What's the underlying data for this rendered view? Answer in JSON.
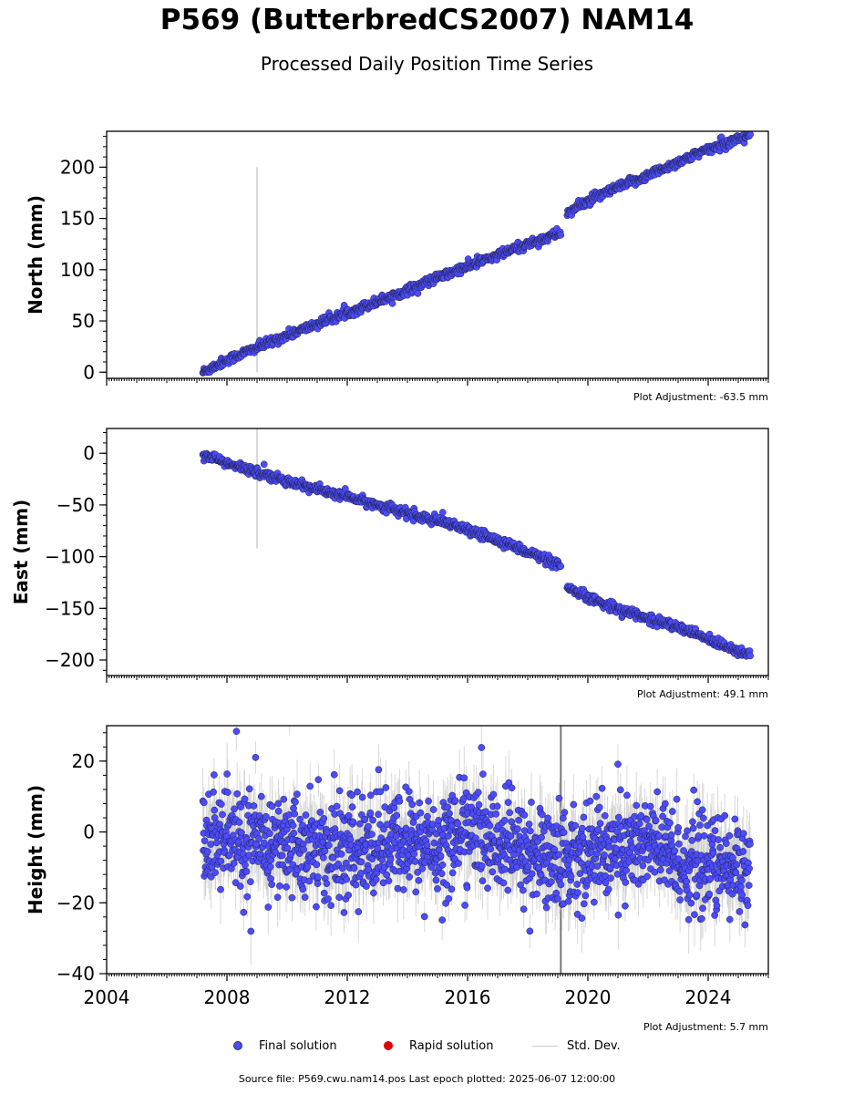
{
  "title": "P569 (ButterbredCS2007) NAM14",
  "subtitle": "Processed Daily Position Time Series",
  "legend": {
    "final": "Final solution",
    "rapid": "Rapid solution",
    "stddev": "Std. Dev."
  },
  "footer": "Source file: P569.cwu.nam14.pos  Last epoch plotted: 2025-06-07 12:00:00",
  "colors": {
    "final": "#4b4bff",
    "rapid": "#e00000",
    "stddev": "#c8c8c8",
    "outline": "#222244"
  },
  "chart_data": [
    {
      "type": "scatter",
      "panel": "north",
      "ylabel": "North (mm)",
      "xlim": [
        2004,
        2026
      ],
      "ylim": [
        -6,
        235
      ],
      "yticks": [
        0,
        50,
        100,
        150,
        200
      ],
      "xticks": [
        2004,
        2008,
        2012,
        2016,
        2020,
        2024
      ],
      "adjustment": "Plot Adjustment: -63.5 mm",
      "series": [
        {
          "name": "Final solution",
          "x": [
            2007.2,
            2008,
            2009,
            2010,
            2011,
            2012,
            2013,
            2014,
            2015,
            2016,
            2017,
            2018,
            2019.1,
            2019.3,
            2020,
            2021,
            2022,
            2023,
            2024,
            2025.4
          ],
          "y": [
            0,
            12,
            24,
            36,
            47,
            58,
            69,
            80,
            92,
            103,
            114,
            125,
            136,
            155,
            167,
            180,
            192,
            205,
            217,
            232
          ]
        }
      ],
      "spike": {
        "x": 2009.0,
        "y1": 200,
        "y2": 0
      }
    },
    {
      "type": "scatter",
      "panel": "east",
      "ylabel": "East (mm)",
      "xlim": [
        2004,
        2026
      ],
      "ylim": [
        -215,
        24
      ],
      "yticks": [
        0,
        -50,
        -100,
        -150,
        -200
      ],
      "xticks": [
        2004,
        2008,
        2012,
        2016,
        2020,
        2024
      ],
      "adjustment": "Plot Adjustment: 49.1 mm",
      "series": [
        {
          "name": "Final solution",
          "x": [
            2007.2,
            2008,
            2009,
            2010,
            2011,
            2012,
            2013,
            2014,
            2015,
            2016,
            2017,
            2018,
            2019.1,
            2019.3,
            2020,
            2021,
            2022,
            2023,
            2024,
            2025.4
          ],
          "y": [
            0,
            -10,
            -18,
            -27,
            -35,
            -42,
            -50,
            -58,
            -66,
            -74,
            -84,
            -95,
            -110,
            -130,
            -140,
            -150,
            -160,
            -168,
            -180,
            -195
          ]
        }
      ],
      "spike": {
        "x": 2009.0,
        "y1": 25,
        "y2": -92
      }
    },
    {
      "type": "scatter",
      "panel": "height",
      "ylabel": "Height (mm)",
      "xlim": [
        2004,
        2026
      ],
      "ylim": [
        -40,
        30
      ],
      "yticks": [
        -40,
        -20,
        0,
        20
      ],
      "xticks": [
        2004,
        2008,
        2012,
        2016,
        2020,
        2024
      ],
      "xticklabels": [
        "2004",
        "2008",
        "2012",
        "2016",
        "2020",
        "2024"
      ],
      "adjustment": "Plot Adjustment: 5.7 mm",
      "series": [
        {
          "name": "Final solution",
          "x": [
            2007.2,
            2008,
            2009,
            2010,
            2011,
            2012,
            2013,
            2014,
            2015,
            2016,
            2017,
            2018,
            2019,
            2020,
            2021,
            2022,
            2023,
            2024,
            2025.4
          ],
          "y": [
            0,
            -2,
            -4,
            -3,
            -5,
            -6,
            -4,
            -3,
            -4,
            1,
            -3,
            -6,
            -8,
            -6,
            -4,
            -3,
            -8,
            -10,
            -10
          ]
        }
      ],
      "spike": {
        "x": 2019.1,
        "y1": 30,
        "y2": -40
      }
    }
  ]
}
